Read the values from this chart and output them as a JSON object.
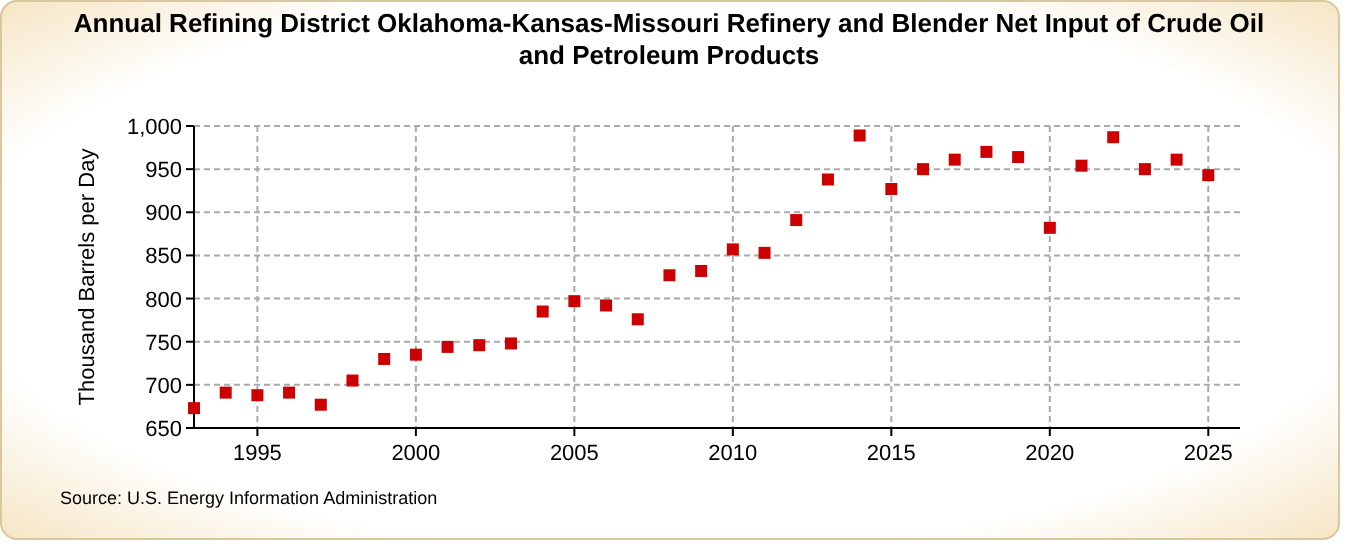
{
  "chart_data": {
    "type": "scatter",
    "title": "Annual Refining District Oklahoma-Kansas-Missouri Refinery and Blender Net Input of Crude Oil and Petroleum Products",
    "ylabel": "Thousand Barrels per Day",
    "annotations": [
      "Source: U.S. Energy Information Administration"
    ],
    "x": [
      1993,
      1994,
      1995,
      1996,
      1997,
      1998,
      1999,
      2000,
      2001,
      2002,
      2003,
      2004,
      2005,
      2006,
      2007,
      2008,
      2009,
      2010,
      2011,
      2012,
      2013,
      2014,
      2015,
      2016,
      2017,
      2018,
      2019,
      2020,
      2021,
      2022,
      2023,
      2024,
      2025
    ],
    "series": [
      {
        "color": "#cc0000",
        "values": [
          673,
          691,
          688,
          691,
          677,
          705,
          730,
          735,
          744,
          746,
          748,
          785,
          797,
          792,
          776,
          827,
          832,
          857,
          853,
          891,
          938,
          989,
          927,
          950,
          961,
          970,
          964,
          882,
          954,
          987,
          950,
          961,
          943
        ]
      }
    ],
    "xlim": [
      1993,
      2026
    ],
    "xticks": [
      1995,
      2000,
      2005,
      2010,
      2015,
      2020,
      2025
    ],
    "ylim": [
      650,
      1000
    ],
    "yticks": [
      650,
      700,
      750,
      800,
      850,
      900,
      950,
      {
        "value": 1000,
        "label": "1,000"
      }
    ],
    "grid": true,
    "marker": "square"
  }
}
